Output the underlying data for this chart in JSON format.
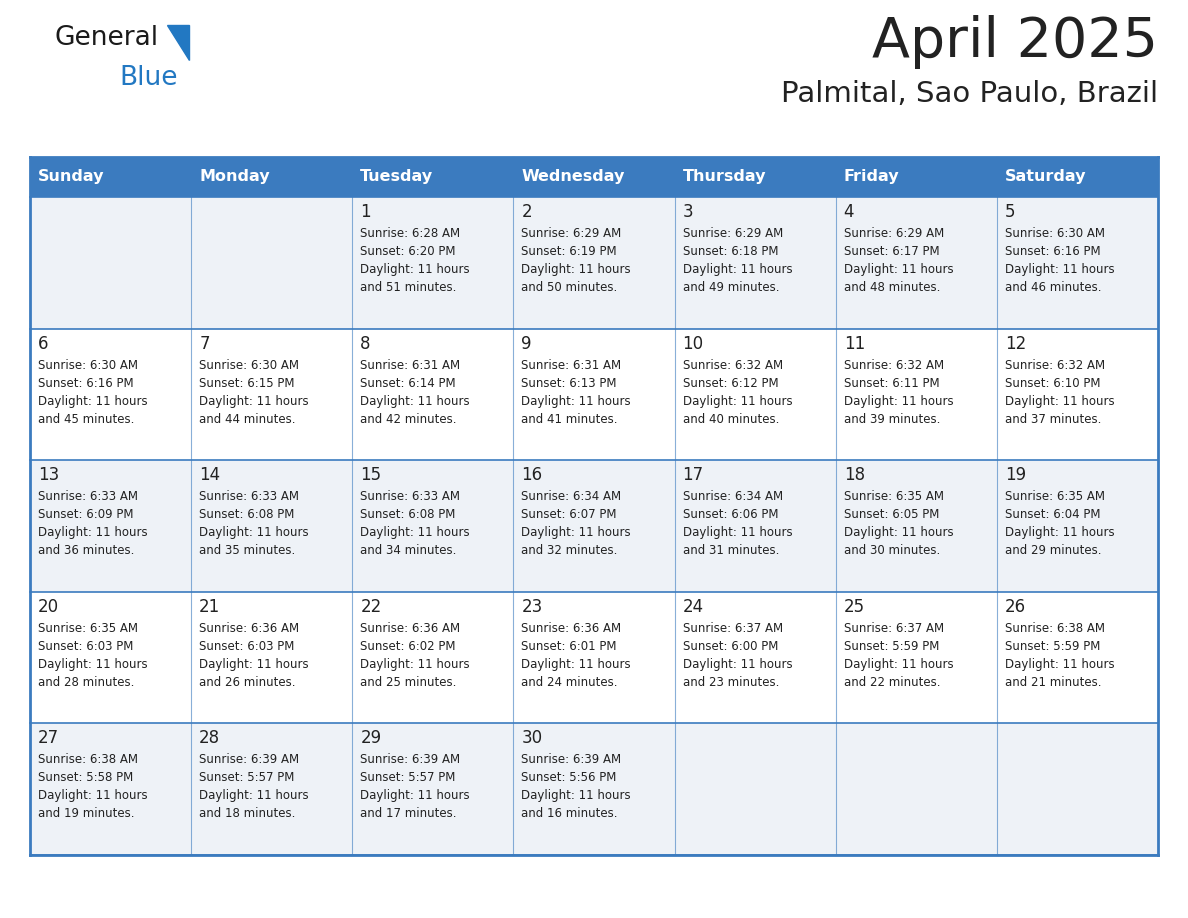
{
  "title": "April 2025",
  "subtitle": "Palmital, Sao Paulo, Brazil",
  "header_bg_color": "#3b7bbf",
  "header_text_color": "#ffffff",
  "cell_bg_color_light": "#eef2f7",
  "cell_bg_color_white": "#ffffff",
  "border_color": "#3b7bbf",
  "text_color_dark": "#222222",
  "text_color_blue": "#2278c2",
  "day_names": [
    "Sunday",
    "Monday",
    "Tuesday",
    "Wednesday",
    "Thursday",
    "Friday",
    "Saturday"
  ],
  "days": [
    {
      "row": 0,
      "col": 0,
      "date": "",
      "sunrise": "",
      "sunset": "",
      "daylight_line1": "",
      "daylight_line2": ""
    },
    {
      "row": 0,
      "col": 1,
      "date": "",
      "sunrise": "",
      "sunset": "",
      "daylight_line1": "",
      "daylight_line2": ""
    },
    {
      "row": 0,
      "col": 2,
      "date": "1",
      "sunrise": "6:28 AM",
      "sunset": "6:20 PM",
      "daylight_line1": "11 hours",
      "daylight_line2": "and 51 minutes."
    },
    {
      "row": 0,
      "col": 3,
      "date": "2",
      "sunrise": "6:29 AM",
      "sunset": "6:19 PM",
      "daylight_line1": "11 hours",
      "daylight_line2": "and 50 minutes."
    },
    {
      "row": 0,
      "col": 4,
      "date": "3",
      "sunrise": "6:29 AM",
      "sunset": "6:18 PM",
      "daylight_line1": "11 hours",
      "daylight_line2": "and 49 minutes."
    },
    {
      "row": 0,
      "col": 5,
      "date": "4",
      "sunrise": "6:29 AM",
      "sunset": "6:17 PM",
      "daylight_line1": "11 hours",
      "daylight_line2": "and 48 minutes."
    },
    {
      "row": 0,
      "col": 6,
      "date": "5",
      "sunrise": "6:30 AM",
      "sunset": "6:16 PM",
      "daylight_line1": "11 hours",
      "daylight_line2": "and 46 minutes."
    },
    {
      "row": 1,
      "col": 0,
      "date": "6",
      "sunrise": "6:30 AM",
      "sunset": "6:16 PM",
      "daylight_line1": "11 hours",
      "daylight_line2": "and 45 minutes."
    },
    {
      "row": 1,
      "col": 1,
      "date": "7",
      "sunrise": "6:30 AM",
      "sunset": "6:15 PM",
      "daylight_line1": "11 hours",
      "daylight_line2": "and 44 minutes."
    },
    {
      "row": 1,
      "col": 2,
      "date": "8",
      "sunrise": "6:31 AM",
      "sunset": "6:14 PM",
      "daylight_line1": "11 hours",
      "daylight_line2": "and 42 minutes."
    },
    {
      "row": 1,
      "col": 3,
      "date": "9",
      "sunrise": "6:31 AM",
      "sunset": "6:13 PM",
      "daylight_line1": "11 hours",
      "daylight_line2": "and 41 minutes."
    },
    {
      "row": 1,
      "col": 4,
      "date": "10",
      "sunrise": "6:32 AM",
      "sunset": "6:12 PM",
      "daylight_line1": "11 hours",
      "daylight_line2": "and 40 minutes."
    },
    {
      "row": 1,
      "col": 5,
      "date": "11",
      "sunrise": "6:32 AM",
      "sunset": "6:11 PM",
      "daylight_line1": "11 hours",
      "daylight_line2": "and 39 minutes."
    },
    {
      "row": 1,
      "col": 6,
      "date": "12",
      "sunrise": "6:32 AM",
      "sunset": "6:10 PM",
      "daylight_line1": "11 hours",
      "daylight_line2": "and 37 minutes."
    },
    {
      "row": 2,
      "col": 0,
      "date": "13",
      "sunrise": "6:33 AM",
      "sunset": "6:09 PM",
      "daylight_line1": "11 hours",
      "daylight_line2": "and 36 minutes."
    },
    {
      "row": 2,
      "col": 1,
      "date": "14",
      "sunrise": "6:33 AM",
      "sunset": "6:08 PM",
      "daylight_line1": "11 hours",
      "daylight_line2": "and 35 minutes."
    },
    {
      "row": 2,
      "col": 2,
      "date": "15",
      "sunrise": "6:33 AM",
      "sunset": "6:08 PM",
      "daylight_line1": "11 hours",
      "daylight_line2": "and 34 minutes."
    },
    {
      "row": 2,
      "col": 3,
      "date": "16",
      "sunrise": "6:34 AM",
      "sunset": "6:07 PM",
      "daylight_line1": "11 hours",
      "daylight_line2": "and 32 minutes."
    },
    {
      "row": 2,
      "col": 4,
      "date": "17",
      "sunrise": "6:34 AM",
      "sunset": "6:06 PM",
      "daylight_line1": "11 hours",
      "daylight_line2": "and 31 minutes."
    },
    {
      "row": 2,
      "col": 5,
      "date": "18",
      "sunrise": "6:35 AM",
      "sunset": "6:05 PM",
      "daylight_line1": "11 hours",
      "daylight_line2": "and 30 minutes."
    },
    {
      "row": 2,
      "col": 6,
      "date": "19",
      "sunrise": "6:35 AM",
      "sunset": "6:04 PM",
      "daylight_line1": "11 hours",
      "daylight_line2": "and 29 minutes."
    },
    {
      "row": 3,
      "col": 0,
      "date": "20",
      "sunrise": "6:35 AM",
      "sunset": "6:03 PM",
      "daylight_line1": "11 hours",
      "daylight_line2": "and 28 minutes."
    },
    {
      "row": 3,
      "col": 1,
      "date": "21",
      "sunrise": "6:36 AM",
      "sunset": "6:03 PM",
      "daylight_line1": "11 hours",
      "daylight_line2": "and 26 minutes."
    },
    {
      "row": 3,
      "col": 2,
      "date": "22",
      "sunrise": "6:36 AM",
      "sunset": "6:02 PM",
      "daylight_line1": "11 hours",
      "daylight_line2": "and 25 minutes."
    },
    {
      "row": 3,
      "col": 3,
      "date": "23",
      "sunrise": "6:36 AM",
      "sunset": "6:01 PM",
      "daylight_line1": "11 hours",
      "daylight_line2": "and 24 minutes."
    },
    {
      "row": 3,
      "col": 4,
      "date": "24",
      "sunrise": "6:37 AM",
      "sunset": "6:00 PM",
      "daylight_line1": "11 hours",
      "daylight_line2": "and 23 minutes."
    },
    {
      "row": 3,
      "col": 5,
      "date": "25",
      "sunrise": "6:37 AM",
      "sunset": "5:59 PM",
      "daylight_line1": "11 hours",
      "daylight_line2": "and 22 minutes."
    },
    {
      "row": 3,
      "col": 6,
      "date": "26",
      "sunrise": "6:38 AM",
      "sunset": "5:59 PM",
      "daylight_line1": "11 hours",
      "daylight_line2": "and 21 minutes."
    },
    {
      "row": 4,
      "col": 0,
      "date": "27",
      "sunrise": "6:38 AM",
      "sunset": "5:58 PM",
      "daylight_line1": "11 hours",
      "daylight_line2": "and 19 minutes."
    },
    {
      "row": 4,
      "col": 1,
      "date": "28",
      "sunrise": "6:39 AM",
      "sunset": "5:57 PM",
      "daylight_line1": "11 hours",
      "daylight_line2": "and 18 minutes."
    },
    {
      "row": 4,
      "col": 2,
      "date": "29",
      "sunrise": "6:39 AM",
      "sunset": "5:57 PM",
      "daylight_line1": "11 hours",
      "daylight_line2": "and 17 minutes."
    },
    {
      "row": 4,
      "col": 3,
      "date": "30",
      "sunrise": "6:39 AM",
      "sunset": "5:56 PM",
      "daylight_line1": "11 hours",
      "daylight_line2": "and 16 minutes."
    },
    {
      "row": 4,
      "col": 4,
      "date": "",
      "sunrise": "",
      "sunset": "",
      "daylight_line1": "",
      "daylight_line2": ""
    },
    {
      "row": 4,
      "col": 5,
      "date": "",
      "sunrise": "",
      "sunset": "",
      "daylight_line1": "",
      "daylight_line2": ""
    },
    {
      "row": 4,
      "col": 6,
      "date": "",
      "sunrise": "",
      "sunset": "",
      "daylight_line1": "",
      "daylight_line2": ""
    }
  ],
  "num_rows": 5,
  "num_cols": 7
}
